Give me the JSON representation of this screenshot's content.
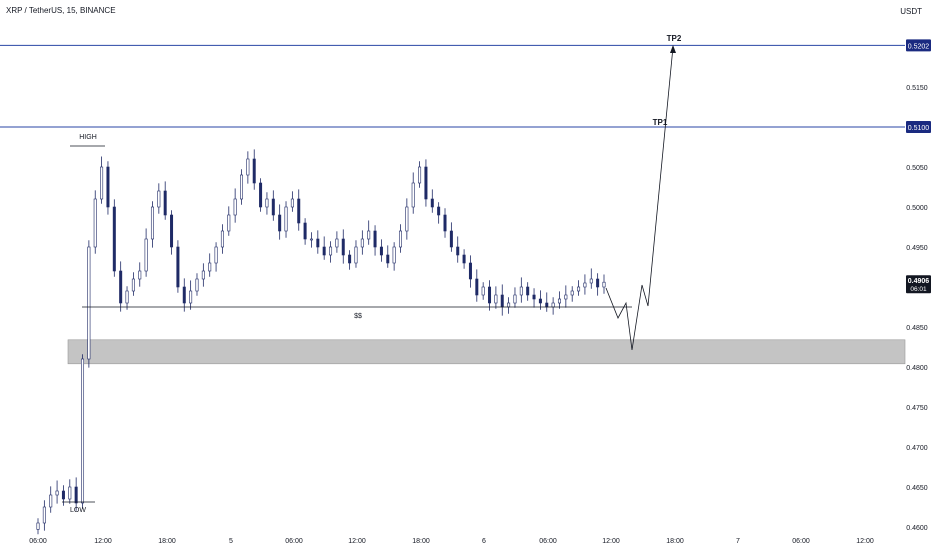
{
  "header": {
    "symbol_title": "XRP / TetherUS, 15, BINANCE",
    "currency": "USDT"
  },
  "price_tag": {
    "value": "0.4906",
    "countdown": "06:01"
  },
  "colors": {
    "candle": "#1f2a66",
    "level_line": "#2a46a5",
    "tag_bg": "#1a2a80",
    "zone": "#c4c4c4",
    "axis_text": "#131722",
    "price_tag_bg": "#131722"
  },
  "chart_data": {
    "type": "candlestick",
    "y_axis": {
      "min": 0.46,
      "max": 0.525,
      "ticks": [
        "0.4600",
        "0.4650",
        "0.4700",
        "0.4750",
        "0.4800",
        "0.4850",
        "0.4900",
        "0.4950",
        "0.5000",
        "0.5050",
        "0.5100",
        "0.5150",
        "0.5200"
      ],
      "unit": "USDT"
    },
    "x_axis": {
      "labels": [
        "06:00",
        "12:00",
        "18:00",
        "5",
        "06:00",
        "12:00",
        "18:00",
        "6",
        "06:00",
        "12:00",
        "18:00",
        "7",
        "06:00",
        "12:00"
      ]
    },
    "levels": [
      {
        "price": 0.5202,
        "label": "0.5202",
        "annotation": "TP2"
      },
      {
        "price": 0.51,
        "label": "0.5100",
        "annotation": "TP1"
      }
    ],
    "zone": {
      "from": 0.4804,
      "to": 0.4834
    },
    "annotations": {
      "high": "HIGH",
      "low": "LOW",
      "liquidity": "$$"
    },
    "liquidity_line": {
      "price": 0.4875
    },
    "close": [
      0.4605,
      0.4625,
      0.464,
      0.4645,
      0.4635,
      0.465,
      0.463,
      0.481,
      0.495,
      0.501,
      0.505,
      0.5,
      0.492,
      0.488,
      0.4895,
      0.491,
      0.492,
      0.496,
      0.5,
      0.502,
      0.499,
      0.495,
      0.49,
      0.488,
      0.4895,
      0.491,
      0.492,
      0.493,
      0.495,
      0.497,
      0.499,
      0.501,
      0.504,
      0.506,
      0.503,
      0.5,
      0.501,
      0.499,
      0.497,
      0.5,
      0.501,
      0.498,
      0.496,
      0.496,
      0.495,
      0.494,
      0.495,
      0.496,
      0.494,
      0.493,
      0.495,
      0.496,
      0.497,
      0.495,
      0.494,
      0.493,
      0.495,
      0.497,
      0.5,
      0.503,
      0.505,
      0.501,
      0.5,
      0.499,
      0.497,
      0.495,
      0.494,
      0.493,
      0.491,
      0.489,
      0.49,
      0.488,
      0.489,
      0.4875,
      0.488,
      0.489,
      0.49,
      0.489,
      0.4885,
      0.488,
      0.4875,
      0.488,
      0.4885,
      0.489,
      0.4895,
      0.49,
      0.4905,
      0.491,
      0.49,
      0.4906
    ]
  }
}
